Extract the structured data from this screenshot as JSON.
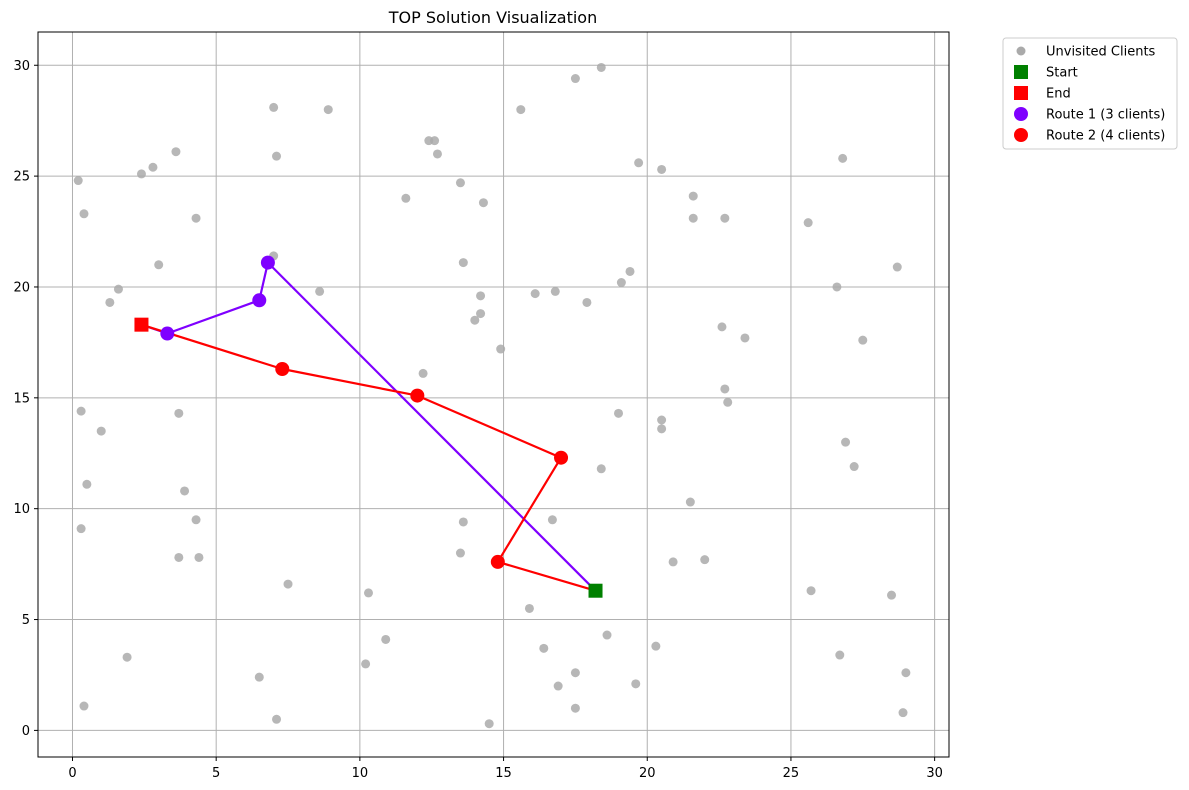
{
  "chart_data": {
    "type": "scatter",
    "title": "TOP Solution Visualization",
    "xlabel": "",
    "ylabel": "",
    "xlim": [
      -1.2,
      30.5
    ],
    "ylim": [
      -1.2,
      31.5
    ],
    "xticks": [
      0,
      5,
      10,
      15,
      20,
      25,
      30
    ],
    "yticks": [
      0,
      5,
      10,
      15,
      20,
      25,
      30
    ],
    "grid": true,
    "legend_position": "outside-top-right",
    "colors": {
      "unvisited": "#aaaaaa",
      "start": "#008000",
      "end": "#ff0000",
      "route1": "#7f00ff",
      "route2": "#ff0000",
      "grid": "#b0b0b0"
    },
    "legend": [
      {
        "label": "Unvisited Clients",
        "marker": "circle-small",
        "color": "#aaaaaa"
      },
      {
        "label": "Start",
        "marker": "square",
        "color": "#008000"
      },
      {
        "label": "End",
        "marker": "square",
        "color": "#ff0000"
      },
      {
        "label": "Route 1 (3 clients)",
        "marker": "circle",
        "color": "#7f00ff"
      },
      {
        "label": "Route 2 (4 clients)",
        "marker": "circle",
        "color": "#ff0000"
      }
    ],
    "start": [
      18.2,
      6.3
    ],
    "end": [
      2.4,
      18.3
    ],
    "routes": [
      {
        "name": "Route 1 (3 clients)",
        "color": "#7f00ff",
        "points": [
          [
            18.2,
            6.3
          ],
          [
            6.8,
            21.1
          ],
          [
            6.5,
            19.4
          ],
          [
            3.3,
            17.9
          ],
          [
            2.4,
            18.3
          ]
        ],
        "clients": [
          [
            6.8,
            21.1
          ],
          [
            6.5,
            19.4
          ],
          [
            3.3,
            17.9
          ]
        ]
      },
      {
        "name": "Route 2 (4 clients)",
        "color": "#ff0000",
        "points": [
          [
            18.2,
            6.3
          ],
          [
            14.8,
            7.6
          ],
          [
            17.0,
            12.3
          ],
          [
            12.0,
            15.1
          ],
          [
            7.3,
            16.3
          ],
          [
            2.4,
            18.3
          ]
        ],
        "clients": [
          [
            14.8,
            7.6
          ],
          [
            17.0,
            12.3
          ],
          [
            12.0,
            15.1
          ],
          [
            7.3,
            16.3
          ]
        ]
      }
    ],
    "unvisited": [
      [
        18.4,
        29.9
      ],
      [
        17.5,
        29.4
      ],
      [
        7.0,
        28.1
      ],
      [
        8.9,
        28.0
      ],
      [
        15.6,
        28.0
      ],
      [
        12.4,
        26.6
      ],
      [
        12.6,
        26.6
      ],
      [
        12.7,
        26.0
      ],
      [
        3.6,
        26.1
      ],
      [
        7.1,
        25.9
      ],
      [
        2.8,
        25.4
      ],
      [
        2.4,
        25.1
      ],
      [
        0.2,
        24.8
      ],
      [
        13.5,
        24.7
      ],
      [
        19.7,
        25.6
      ],
      [
        20.5,
        25.3
      ],
      [
        26.8,
        25.8
      ],
      [
        11.6,
        24.0
      ],
      [
        14.3,
        23.8
      ],
      [
        21.6,
        24.1
      ],
      [
        0.4,
        23.3
      ],
      [
        4.3,
        23.1
      ],
      [
        21.6,
        23.1
      ],
      [
        22.7,
        23.1
      ],
      [
        25.6,
        22.9
      ],
      [
        7.0,
        21.4
      ],
      [
        3.0,
        21.0
      ],
      [
        13.6,
        21.1
      ],
      [
        28.7,
        20.9
      ],
      [
        19.4,
        20.7
      ],
      [
        19.1,
        20.2
      ],
      [
        26.6,
        20.0
      ],
      [
        1.6,
        19.9
      ],
      [
        8.6,
        19.8
      ],
      [
        16.8,
        19.8
      ],
      [
        16.1,
        19.7
      ],
      [
        14.2,
        19.6
      ],
      [
        1.3,
        19.3
      ],
      [
        17.9,
        19.3
      ],
      [
        14.2,
        18.8
      ],
      [
        14.0,
        18.5
      ],
      [
        22.6,
        18.2
      ],
      [
        23.4,
        17.7
      ],
      [
        27.5,
        17.6
      ],
      [
        14.9,
        17.2
      ],
      [
        12.2,
        16.1
      ],
      [
        22.7,
        15.4
      ],
      [
        22.8,
        14.8
      ],
      [
        0.3,
        14.4
      ],
      [
        3.7,
        14.3
      ],
      [
        19.0,
        14.3
      ],
      [
        20.5,
        14.0
      ],
      [
        20.5,
        13.6
      ],
      [
        1.0,
        13.5
      ],
      [
        26.9,
        13.0
      ],
      [
        27.2,
        11.9
      ],
      [
        18.4,
        11.8
      ],
      [
        0.5,
        11.1
      ],
      [
        3.9,
        10.8
      ],
      [
        21.5,
        10.3
      ],
      [
        4.3,
        9.5
      ],
      [
        13.6,
        9.4
      ],
      [
        16.7,
        9.5
      ],
      [
        0.3,
        9.1
      ],
      [
        13.5,
        8.0
      ],
      [
        3.7,
        7.8
      ],
      [
        4.4,
        7.8
      ],
      [
        20.9,
        7.6
      ],
      [
        22.0,
        7.7
      ],
      [
        7.5,
        6.6
      ],
      [
        25.7,
        6.3
      ],
      [
        10.3,
        6.2
      ],
      [
        28.5,
        6.1
      ],
      [
        15.9,
        5.5
      ],
      [
        18.6,
        4.3
      ],
      [
        10.9,
        4.1
      ],
      [
        20.3,
        3.8
      ],
      [
        16.4,
        3.7
      ],
      [
        26.7,
        3.4
      ],
      [
        1.9,
        3.3
      ],
      [
        10.2,
        3.0
      ],
      [
        29.0,
        2.6
      ],
      [
        17.5,
        2.6
      ],
      [
        6.5,
        2.4
      ],
      [
        16.9,
        2.0
      ],
      [
        19.6,
        2.1
      ],
      [
        0.4,
        1.1
      ],
      [
        17.5,
        1.0
      ],
      [
        28.9,
        0.8
      ],
      [
        7.1,
        0.5
      ],
      [
        14.5,
        0.3
      ]
    ]
  }
}
